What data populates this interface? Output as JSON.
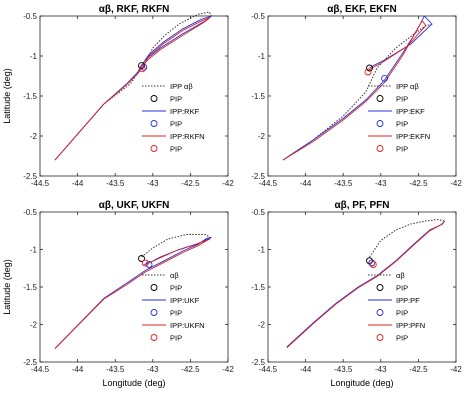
{
  "colors": {
    "ipp_ab": "#333333",
    "filter": "#2233dd",
    "filter_n": "#e02020",
    "pip_ab": "#000000"
  },
  "chart_data": [
    {
      "type": "line",
      "title": "αβ, RKF, RKFN",
      "xlabel": "",
      "ylabel": "Latitude (deg)",
      "xlim": [
        -44.5,
        -42
      ],
      "ylim": [
        -2.5,
        -0.5
      ],
      "xticks": [
        "-44.5",
        "-44",
        "-43.5",
        "-43",
        "-42.5",
        "-42"
      ],
      "yticks": [
        "-0.5",
        "-1",
        "-1.5",
        "-2",
        "-2.5"
      ],
      "grid": false,
      "legend_position": "bottom-right",
      "legend": [
        "IPP αβ",
        "PIP",
        "IPP:RKF",
        "PIP",
        "IPP:RKFN",
        "PIP"
      ],
      "series": [
        {
          "name": "IPP αβ",
          "style": "dotted",
          "color": "ipp_ab",
          "x": [
            -44.3,
            -43.65,
            -43.3,
            -43.1,
            -43.0,
            -42.85,
            -42.65,
            -42.4,
            -42.25,
            -42.22
          ],
          "y": [
            -2.3,
            -1.6,
            -1.35,
            -1.08,
            -0.9,
            -0.75,
            -0.6,
            -0.48,
            -0.45,
            -0.5
          ]
        },
        {
          "name": "IPP:RKF",
          "style": "solid",
          "color": "filter",
          "x": [
            -44.3,
            -43.65,
            -43.35,
            -43.2,
            -43.15,
            -43.05,
            -42.85,
            -42.6,
            -42.35,
            -42.22,
            -42.3,
            -42.6,
            -42.9,
            -43.1,
            -43.15
          ],
          "y": [
            -2.3,
            -1.6,
            -1.35,
            -1.2,
            -1.12,
            -0.98,
            -0.82,
            -0.66,
            -0.54,
            -0.5,
            -0.56,
            -0.72,
            -0.9,
            -1.05,
            -1.12
          ]
        },
        {
          "name": "IPP:RKFN",
          "style": "solid",
          "color": "filter_n",
          "x": [
            -44.3,
            -43.65,
            -43.35,
            -43.2,
            -43.14,
            -43.05,
            -42.85,
            -42.6,
            -42.35,
            -42.24,
            -42.32,
            -42.6,
            -42.9,
            -43.08,
            -43.14
          ],
          "y": [
            -2.3,
            -1.6,
            -1.36,
            -1.22,
            -1.14,
            -1.0,
            -0.84,
            -0.68,
            -0.56,
            -0.52,
            -0.58,
            -0.74,
            -0.92,
            -1.06,
            -1.14
          ]
        }
      ],
      "pips": [
        {
          "x": -43.15,
          "y": -1.12,
          "color": "pip_ab"
        },
        {
          "x": -43.12,
          "y": -1.14,
          "color": "filter"
        },
        {
          "x": -43.14,
          "y": -1.16,
          "color": "filter_n"
        }
      ]
    },
    {
      "type": "line",
      "title": "αβ, EKF, EKFN",
      "xlabel": "",
      "ylabel": "",
      "xlim": [
        -44.5,
        -42
      ],
      "ylim": [
        -2.5,
        -0.5
      ],
      "xticks": [
        "-44.5",
        "-44",
        "-43.5",
        "-43",
        "-42.5",
        "-42"
      ],
      "yticks": [
        "-0.5",
        "-1",
        "-1.5",
        "-2",
        "-2.5"
      ],
      "grid": false,
      "legend_position": "bottom-right",
      "legend": [
        "IPP αβ",
        "PIP",
        "IPP:EKF",
        "PIP",
        "IPP:EKFN",
        "PIP"
      ],
      "series": [
        {
          "name": "IPP αβ",
          "style": "dotted",
          "color": "ipp_ab",
          "x": [
            -44.3,
            -43.9,
            -43.5,
            -43.2,
            -43.05,
            -42.8,
            -42.55,
            -42.4,
            -42.3
          ],
          "y": [
            -2.3,
            -2.05,
            -1.75,
            -1.45,
            -1.15,
            -0.9,
            -0.72,
            -0.62,
            -0.6
          ]
        },
        {
          "name": "IPP:EKF",
          "style": "solid",
          "color": "filter",
          "x": [
            -44.3,
            -43.9,
            -43.5,
            -43.2,
            -42.95,
            -42.7,
            -42.52,
            -42.42,
            -42.32,
            -42.6,
            -42.95,
            -43.1,
            -43.15
          ],
          "y": [
            -2.3,
            -2.05,
            -1.78,
            -1.55,
            -1.3,
            -0.95,
            -0.68,
            -0.5,
            -0.6,
            -0.85,
            -1.05,
            -1.12,
            -1.15
          ]
        },
        {
          "name": "IPP:EKFN",
          "style": "solid",
          "color": "filter_n",
          "x": [
            -44.3,
            -43.9,
            -43.5,
            -43.2,
            -42.95,
            -42.7,
            -42.55,
            -42.45,
            -42.4,
            -42.65,
            -42.98,
            -43.12,
            -43.16
          ],
          "y": [
            -2.3,
            -2.07,
            -1.8,
            -1.57,
            -1.33,
            -0.98,
            -0.72,
            -0.56,
            -0.62,
            -0.88,
            -1.08,
            -1.15,
            -1.18
          ]
        }
      ],
      "pips": [
        {
          "x": -43.15,
          "y": -1.15,
          "color": "pip_ab"
        },
        {
          "x": -42.95,
          "y": -1.28,
          "color": "filter"
        },
        {
          "x": -43.17,
          "y": -1.2,
          "color": "filter_n"
        }
      ]
    },
    {
      "type": "line",
      "title": "αβ, UKF, UKFN",
      "xlabel": "Longitude (deg)",
      "ylabel": "Latitude (deg)",
      "xlim": [
        -44.5,
        -42
      ],
      "ylim": [
        -2.5,
        -0.5
      ],
      "xticks": [
        "-44.5",
        "-44",
        "-43.5",
        "-43",
        "-42.5",
        "-42"
      ],
      "yticks": [
        "-0.5",
        "-1",
        "-1.5",
        "-2",
        "-2.5"
      ],
      "grid": false,
      "legend_position": "bottom-right",
      "legend": [
        "αβ",
        "PIP",
        "IPP:UKF",
        "PIP",
        "IPP:UKFN",
        "PIP"
      ],
      "series": [
        {
          "name": "αβ",
          "style": "dotted",
          "color": "ipp_ab",
          "x": [
            -43.15,
            -43.0,
            -42.8,
            -42.55,
            -42.3,
            -42.22
          ],
          "y": [
            -1.1,
            -0.98,
            -0.86,
            -0.8,
            -0.8,
            -0.85
          ]
        },
        {
          "name": "IPP:UKF",
          "style": "solid",
          "color": "filter",
          "x": [
            -44.3,
            -43.65,
            -43.35,
            -43.1,
            -42.85,
            -42.6,
            -42.4,
            -42.28,
            -42.22,
            -42.4,
            -42.65,
            -42.9,
            -43.05,
            -43.12
          ],
          "y": [
            -2.32,
            -1.65,
            -1.45,
            -1.28,
            -1.15,
            -1.02,
            -0.93,
            -0.85,
            -0.84,
            -0.92,
            -1.0,
            -1.1,
            -1.18,
            -1.2
          ]
        },
        {
          "name": "IPP:UKFN",
          "style": "solid",
          "color": "filter_n",
          "x": [
            -44.3,
            -43.65,
            -43.35,
            -43.1,
            -42.85,
            -42.6,
            -42.4,
            -42.28,
            -42.24,
            -42.45,
            -42.7,
            -42.92,
            -43.05,
            -43.1
          ],
          "y": [
            -2.32,
            -1.66,
            -1.47,
            -1.3,
            -1.17,
            -1.04,
            -0.95,
            -0.88,
            -0.86,
            -0.94,
            -1.02,
            -1.12,
            -1.18,
            -1.2
          ]
        }
      ],
      "pips": [
        {
          "x": -43.15,
          "y": -1.12,
          "color": "pip_ab"
        },
        {
          "x": -43.05,
          "y": -1.2,
          "color": "filter"
        },
        {
          "x": -43.1,
          "y": -1.18,
          "color": "filter_n"
        }
      ]
    },
    {
      "type": "line",
      "title": "αβ, PF, PFN",
      "xlabel": "Longitude (deg)",
      "ylabel": "",
      "xlim": [
        -44.5,
        -42
      ],
      "ylim": [
        -2.5,
        -0.5
      ],
      "xticks": [
        "-44.5",
        "-44",
        "-43.5",
        "-43",
        "-42.5",
        "-42"
      ],
      "yticks": [
        "-0.5",
        "-1",
        "-1.5",
        "-2",
        "-2.5"
      ],
      "grid": false,
      "legend_position": "bottom-right",
      "legend": [
        "αβ",
        "PIP",
        "IPP:PF",
        "PIP",
        "IPP:PFN",
        "PIP"
      ],
      "series": [
        {
          "name": "αβ",
          "style": "dotted",
          "color": "ipp_ab",
          "x": [
            -43.15,
            -43.0,
            -42.8,
            -42.6,
            -42.4,
            -42.25,
            -42.15
          ],
          "y": [
            -1.1,
            -0.88,
            -0.74,
            -0.66,
            -0.62,
            -0.6,
            -0.62
          ]
        },
        {
          "name": "IPP:PF",
          "style": "solid",
          "color": "filter",
          "x": [
            -44.25,
            -43.9,
            -43.6,
            -43.3,
            -43.05,
            -42.8,
            -42.55,
            -42.35,
            -42.18,
            -42.15
          ],
          "y": [
            -2.3,
            -1.98,
            -1.72,
            -1.5,
            -1.35,
            -1.15,
            -0.92,
            -0.74,
            -0.66,
            -0.62
          ]
        },
        {
          "name": "IPP:PFN",
          "style": "solid",
          "color": "filter_n",
          "x": [
            -44.25,
            -43.9,
            -43.6,
            -43.3,
            -43.05,
            -42.8,
            -42.55,
            -42.35,
            -42.2,
            -42.16
          ],
          "y": [
            -2.31,
            -1.99,
            -1.73,
            -1.51,
            -1.36,
            -1.16,
            -0.93,
            -0.75,
            -0.67,
            -0.63
          ]
        }
      ],
      "pips": [
        {
          "x": -43.15,
          "y": -1.15,
          "color": "pip_ab"
        },
        {
          "x": -43.12,
          "y": -1.18,
          "color": "filter"
        },
        {
          "x": -43.1,
          "y": -1.2,
          "color": "filter_n"
        }
      ]
    }
  ]
}
